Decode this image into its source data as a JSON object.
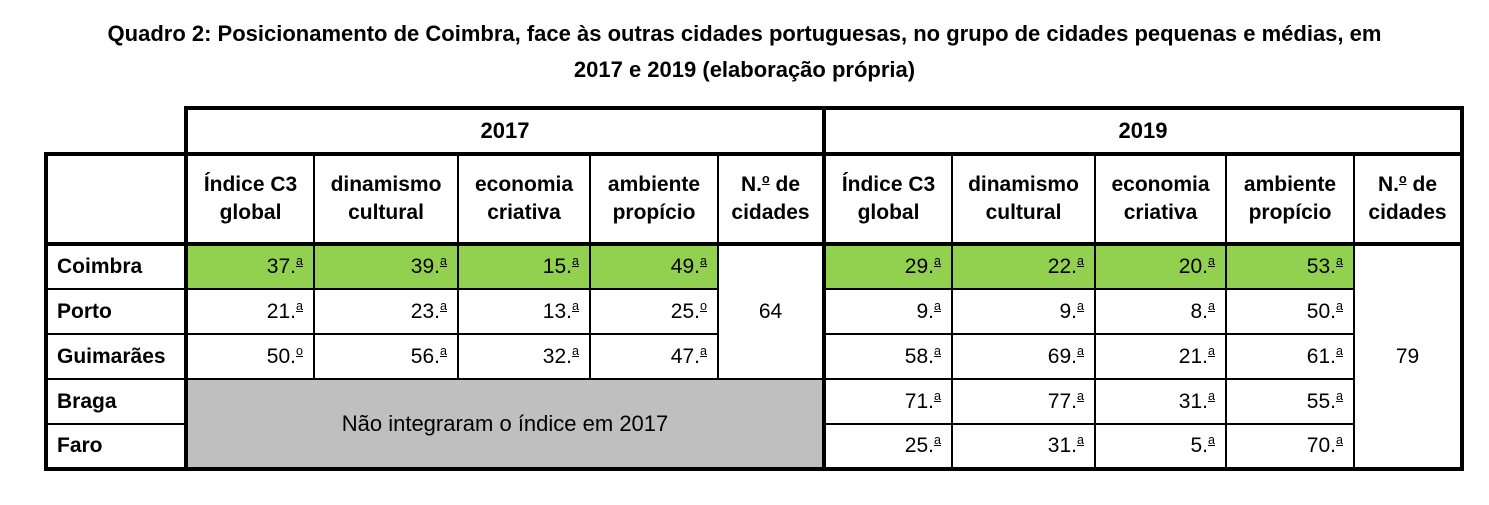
{
  "caption": {
    "lines": [
      "Quadro 2: Posicionamento de Coimbra, face às outras cidades portuguesas, no grupo de cidades pequenas e médias, em",
      "2017 e 2019 (elaboração própria)"
    ]
  },
  "table": {
    "corner_label": "",
    "year_groups": [
      {
        "label": "2017",
        "n_cities": "64"
      },
      {
        "label": "2019",
        "n_cities": "79"
      }
    ],
    "indicator_columns": [
      "Índice C3 global",
      "dinamismo cultural",
      "economia criativa",
      "ambiente propício"
    ],
    "n_cities_column": "N.º de cidades",
    "rows": [
      {
        "label": "Coimbra",
        "highlight": true,
        "y2017": [
          "37.ª",
          "39.ª",
          "15.ª",
          "49.ª"
        ],
        "y2019": [
          "29.ª",
          "22.ª",
          "20.ª",
          "53.ª"
        ]
      },
      {
        "label": "Porto",
        "highlight": false,
        "y2017": [
          "21.ª",
          "23.ª",
          "13.ª",
          "25.º"
        ],
        "y2019": [
          "9.ª",
          "9.ª",
          "8.ª",
          "50.ª"
        ]
      },
      {
        "label": "Guimarães",
        "highlight": false,
        "y2017": [
          "50.º",
          "56.ª",
          "32.ª",
          "47.ª"
        ],
        "y2019": [
          "58.ª",
          "69.ª",
          "21.ª",
          "61.ª"
        ]
      },
      {
        "label": "Braga",
        "highlight": false,
        "y2017": null,
        "y2019": [
          "71.ª",
          "77.ª",
          "31.ª",
          "55.ª"
        ]
      },
      {
        "label": "Faro",
        "highlight": false,
        "y2017": null,
        "y2019": [
          "25.ª",
          "31.ª",
          "5.ª",
          "70.ª"
        ]
      }
    ],
    "missing_note_2017": "Não integraram o índice em 2017",
    "colors": {
      "highlight_green": "#92d050",
      "missing_gray": "#bfbfbf",
      "border_black": "#000000"
    }
  }
}
